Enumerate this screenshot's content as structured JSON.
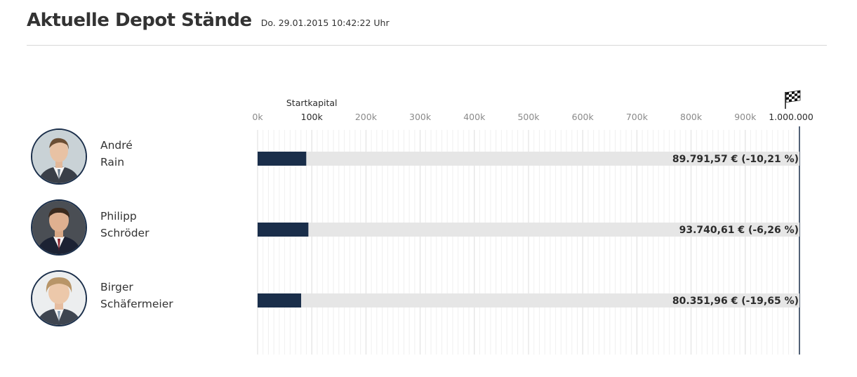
{
  "header": {
    "title": "Aktuelle Depot Stände",
    "date": "Do. 29.01.2015 10:42:22 Uhr"
  },
  "people": [
    {
      "first": "André",
      "last": "Rain"
    },
    {
      "first": "Philipp",
      "last": "Schröder"
    },
    {
      "first": "Birger",
      "last": "Schäfermeier"
    }
  ],
  "chart_data": {
    "type": "bar",
    "orientation": "horizontal",
    "title": "",
    "xlim": [
      0,
      1000000
    ],
    "tick_values": [
      0,
      100000,
      200000,
      300000,
      400000,
      500000,
      600000,
      700000,
      800000,
      900000,
      1000000
    ],
    "tick_labels": [
      "0k",
      "100k",
      "200k",
      "300k",
      "400k",
      "500k",
      "600k",
      "700k",
      "800k",
      "900k",
      "1.000.000"
    ],
    "start_capital": 100000,
    "start_label": "Startkapital",
    "goal_icon": "checkered-flag-icon",
    "bar_color": "#1a2e4a",
    "track_color": "#e6e6e6",
    "categories": [
      "André Rain",
      "Philipp Schröder",
      "Birger Schäfermeier"
    ],
    "values": [
      89791.57,
      93740.61,
      80351.96
    ],
    "value_labels": [
      "89.791,57 € (-10,21 %)",
      "93.740,61 € (-6,26 %)",
      "80.351,96 € (-19,65 %)"
    ]
  }
}
